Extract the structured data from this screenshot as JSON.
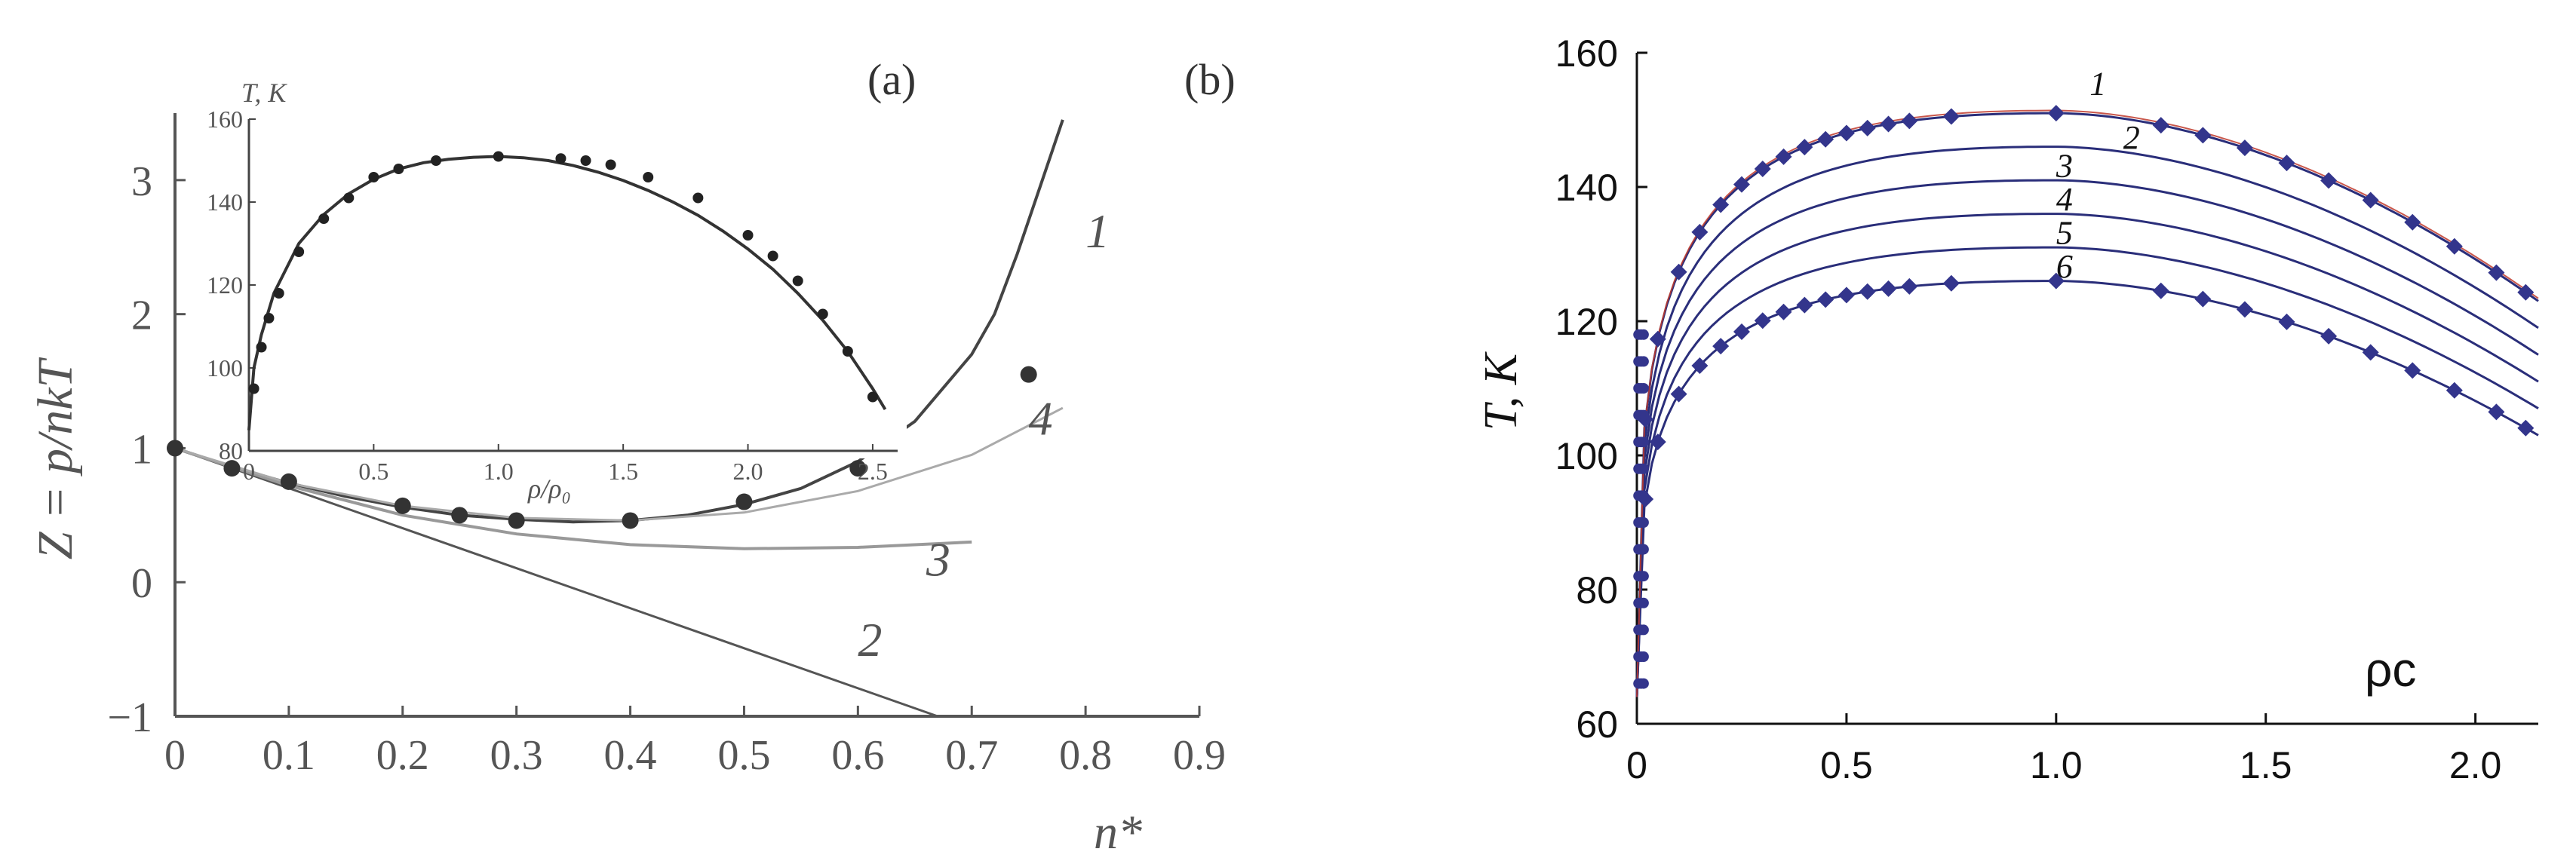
{
  "chart_data": [
    {
      "panel_label": "(a)",
      "type": "line",
      "xlabel": "n*",
      "ylabel": "Z = p/nkT",
      "xlim": [
        0,
        0.9
      ],
      "ylim": [
        -1,
        3.5
      ],
      "xticks": [
        "0",
        "0.1",
        "0.2",
        "0.3",
        "0.4",
        "0.5",
        "0.6",
        "0.7",
        "0.8",
        "0.9"
      ],
      "yticks": [
        "−1",
        "0",
        "1",
        "2",
        "3"
      ],
      "series": [
        {
          "name": "1",
          "x": [
            0,
            0.05,
            0.1,
            0.15,
            0.2,
            0.25,
            0.3,
            0.35,
            0.4,
            0.45,
            0.5,
            0.55,
            0.6,
            0.65,
            0.7,
            0.72,
            0.74,
            0.76,
            0.78
          ],
          "y": [
            1.0,
            0.86,
            0.74,
            0.64,
            0.56,
            0.5,
            0.47,
            0.45,
            0.46,
            0.5,
            0.58,
            0.7,
            0.9,
            1.2,
            1.7,
            2.0,
            2.45,
            2.95,
            3.45
          ]
        },
        {
          "name": "2",
          "x": [
            0,
            0.67
          ],
          "y": [
            1.0,
            -1.0
          ]
        },
        {
          "name": "3",
          "x": [
            0,
            0.1,
            0.2,
            0.3,
            0.4,
            0.5,
            0.6,
            0.7
          ],
          "y": [
            1.0,
            0.72,
            0.5,
            0.36,
            0.28,
            0.25,
            0.26,
            0.3
          ]
        },
        {
          "name": "4",
          "x": [
            0,
            0.1,
            0.2,
            0.3,
            0.4,
            0.5,
            0.6,
            0.7,
            0.78
          ],
          "y": [
            1.0,
            0.74,
            0.57,
            0.48,
            0.46,
            0.52,
            0.68,
            0.95,
            1.3
          ]
        }
      ],
      "points": {
        "x": [
          0,
          0.05,
          0.1,
          0.2,
          0.25,
          0.3,
          0.4,
          0.5,
          0.6,
          0.75
        ],
        "y": [
          1.0,
          0.85,
          0.75,
          0.57,
          0.5,
          0.46,
          0.46,
          0.6,
          0.85,
          1.55
        ]
      },
      "inset": {
        "xlabel": "ρ/ρ₀",
        "ylabel": "T, K",
        "xlim": [
          0,
          2.6
        ],
        "ylim": [
          80,
          160
        ],
        "xticks": [
          "0",
          "0.5",
          "1.0",
          "1.5",
          "2.0",
          "2.5"
        ],
        "yticks": [
          "80",
          "100",
          "120",
          "140",
          "160"
        ],
        "curve": {
          "x": [
            0,
            0.02,
            0.05,
            0.1,
            0.2,
            0.3,
            0.4,
            0.5,
            0.6,
            0.7,
            0.8,
            0.9,
            1.0,
            1.1,
            1.2,
            1.3,
            1.4,
            1.5,
            1.6,
            1.7,
            1.8,
            1.9,
            2.0,
            2.1,
            2.2,
            2.3,
            2.4,
            2.5,
            2.55
          ],
          "y": [
            85,
            100,
            108,
            118,
            130,
            137,
            142,
            145.5,
            148,
            149.5,
            150.3,
            150.8,
            151,
            150.7,
            150,
            148.8,
            147.2,
            145.2,
            142.8,
            140,
            136.8,
            133,
            128.7,
            123.8,
            118,
            111.5,
            104,
            95,
            90
          ]
        },
        "points": {
          "x": [
            0.02,
            0.05,
            0.08,
            0.12,
            0.2,
            0.3,
            0.4,
            0.5,
            0.6,
            0.75,
            1.0,
            1.25,
            1.35,
            1.45,
            1.6,
            1.8,
            2.0,
            2.1,
            2.2,
            2.3,
            2.4,
            2.5
          ],
          "y": [
            95,
            105,
            112,
            118,
            128,
            136,
            141,
            146,
            148,
            150,
            151,
            150.5,
            150,
            149,
            146,
            141,
            132,
            127,
            121,
            113,
            104,
            93
          ]
        }
      },
      "curve_labels": [
        "1",
        "2",
        "3",
        "4"
      ]
    },
    {
      "panel_label": "(b)",
      "type": "line",
      "xlabel": "ρc",
      "ylabel": "T, K",
      "xlim": [
        0,
        2.15
      ],
      "ylim": [
        60,
        160
      ],
      "xticks": [
        "0",
        "0.5",
        "1.0",
        "1.5",
        "2.0"
      ],
      "yticks": [
        "60",
        "80",
        "100",
        "120",
        "140",
        "160"
      ],
      "series": [
        {
          "name": "1",
          "peak": 151,
          "end": 123
        },
        {
          "name": "2",
          "peak": 146,
          "end": 119
        },
        {
          "name": "3",
          "peak": 141,
          "end": 115
        },
        {
          "name": "4",
          "peak": 136,
          "end": 111
        },
        {
          "name": "5",
          "peak": 131,
          "end": 107
        },
        {
          "name": "6",
          "peak": 126,
          "end": 103
        }
      ],
      "red_curve": {
        "series": "1"
      },
      "points": [
        {
          "series": "1",
          "x": [
            0.02,
            0.05,
            0.1,
            0.15,
            0.2,
            0.25,
            0.3,
            0.35,
            0.4,
            0.45,
            0.5,
            0.55,
            0.6,
            0.65,
            0.75,
            1.0,
            1.25,
            1.35,
            1.45,
            1.55,
            1.65,
            1.75,
            1.85,
            1.95,
            2.05,
            2.12
          ]
        },
        {
          "series": "6",
          "x": [
            0.02,
            0.05,
            0.1,
            0.15,
            0.2,
            0.25,
            0.3,
            0.35,
            0.4,
            0.45,
            0.5,
            0.55,
            0.6,
            0.65,
            0.75,
            1.0,
            1.25,
            1.35,
            1.45,
            1.55,
            1.65,
            1.75,
            1.85,
            1.95,
            2.05,
            2.12
          ]
        }
      ]
    }
  ]
}
